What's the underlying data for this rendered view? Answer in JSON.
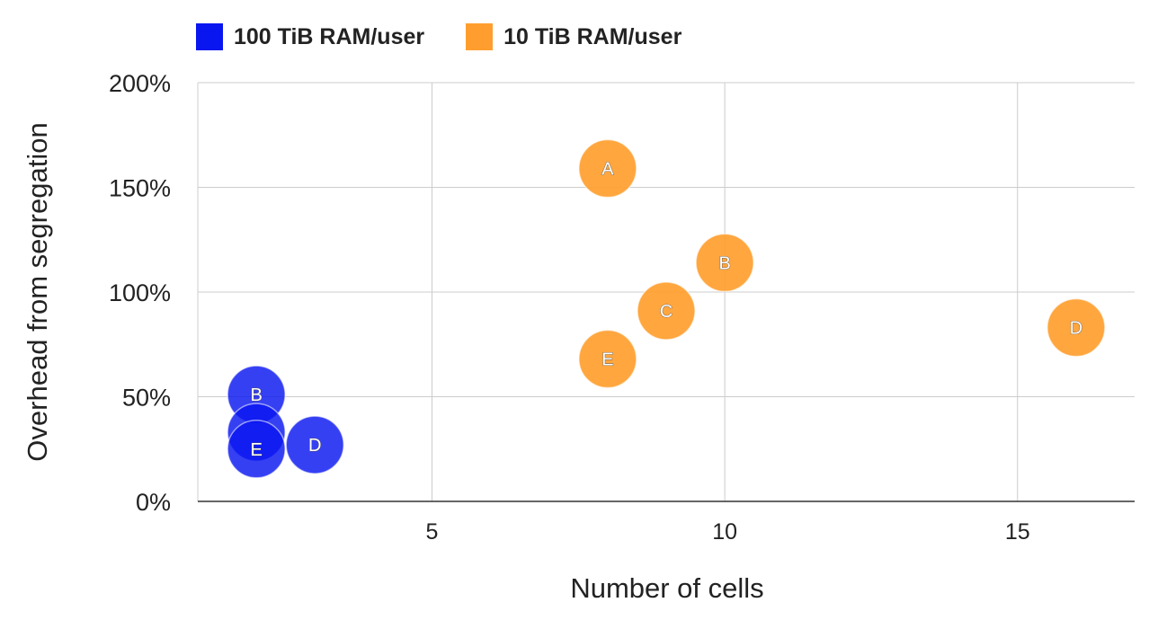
{
  "chart_data": {
    "type": "bubble",
    "title": "",
    "xlabel": "Number of cells",
    "ylabel": "Overhead from segregation",
    "xlim": [
      1,
      17
    ],
    "ylim": [
      0,
      200
    ],
    "x_ticks": [
      5,
      10,
      15
    ],
    "y_ticks": [
      0,
      50,
      100,
      150,
      200
    ],
    "y_tick_labels": [
      "0%",
      "50%",
      "100%",
      "150%",
      "200%"
    ],
    "grid": true,
    "legend_position": "top-left",
    "series": [
      {
        "name": "100 TiB RAM/user",
        "color": "#0a16f0",
        "points": [
          {
            "label": "B",
            "x": 2,
            "y": 51
          },
          {
            "label": "",
            "x": 2,
            "y": 33
          },
          {
            "label": "E",
            "x": 2,
            "y": 25
          },
          {
            "label": "D",
            "x": 3,
            "y": 27
          }
        ]
      },
      {
        "name": "10 TiB RAM/user",
        "color": "#ff9e2e",
        "points": [
          {
            "label": "A",
            "x": 8,
            "y": 159
          },
          {
            "label": "B",
            "x": 10,
            "y": 114
          },
          {
            "label": "C",
            "x": 9,
            "y": 91
          },
          {
            "label": "E",
            "x": 8,
            "y": 68
          },
          {
            "label": "D",
            "x": 16,
            "y": 83
          }
        ]
      }
    ]
  }
}
